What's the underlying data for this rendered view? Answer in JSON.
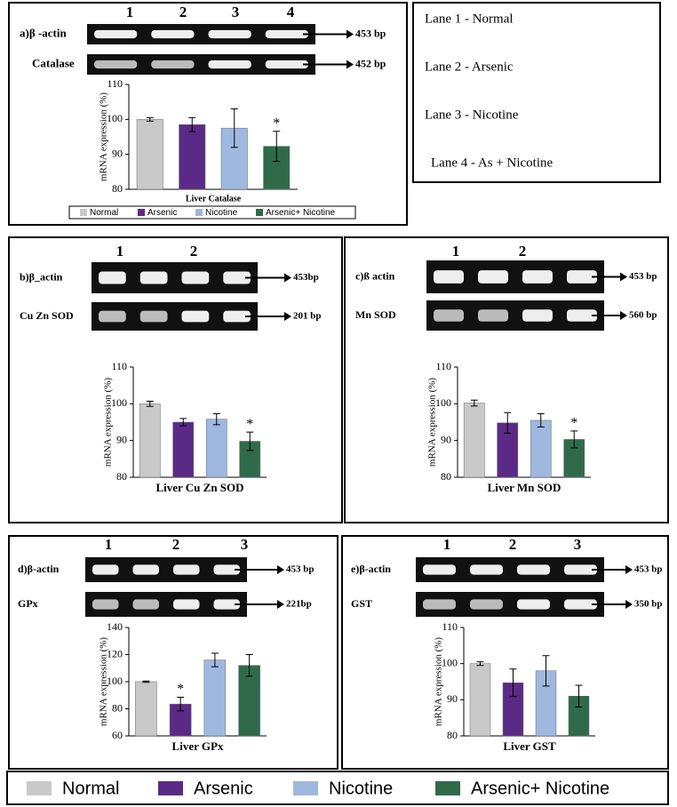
{
  "lanes_key": [
    "Lane 1 - Normal",
    "Lane 2 - Arsenic",
    "Lane 3 - Nicotine",
    "Lane 4 - As + Nicotine"
  ],
  "legend": [
    "Normal",
    "Arsenic",
    "Nicotine",
    "Arsenic+ Nicotine"
  ],
  "chart_data": [
    {
      "type": "bar",
      "panel_label": "a)",
      "gel": {
        "lanes": [
          "1",
          "2",
          "3",
          "4"
        ],
        "rows": [
          {
            "name": "β -actin",
            "size": "453 bp"
          },
          {
            "name": "Catalase",
            "size": "452 bp"
          }
        ]
      },
      "ylabel": "mRNA expression (%)",
      "xlabel": "Liver Catalase",
      "ylim": [
        80,
        110
      ],
      "yticks": [
        80,
        90,
        100,
        110
      ],
      "values": [
        100,
        98.5,
        97.5,
        92.3
      ],
      "errors": [
        0.5,
        2,
        5.5,
        4.3
      ],
      "colors": [
        "#c9c9c9",
        "#5b2a86",
        "#9fb8e0",
        "#2f6b4a"
      ],
      "legend": [
        "Normal",
        "Arsenic",
        "Nicotine",
        "Arsenic+ Nicotine"
      ],
      "annotations": [
        {
          "text": "*",
          "index": 3
        }
      ]
    },
    {
      "type": "bar",
      "panel_label": "b)",
      "gel": {
        "lanes": [
          "1",
          "2"
        ],
        "rows": [
          {
            "name": "β_actin",
            "size": "453bp"
          },
          {
            "name": "Cu Zn SOD",
            "size": "201 bp"
          }
        ]
      },
      "ylabel": "mRNA expression (%)",
      "xlabel": "Liver Cu Zn SOD",
      "ylim": [
        80,
        110
      ],
      "yticks": [
        80,
        90,
        100,
        110
      ],
      "values": [
        100,
        95,
        95.8,
        89.8
      ],
      "errors": [
        0.7,
        1,
        1.5,
        2.5
      ],
      "colors": [
        "#c9c9c9",
        "#5b2a86",
        "#9fb8e0",
        "#2f6b4a"
      ],
      "annotations": [
        {
          "text": "*",
          "index": 3
        }
      ]
    },
    {
      "type": "bar",
      "panel_label": "c)",
      "gel": {
        "lanes": [
          "1",
          "2"
        ],
        "rows": [
          {
            "name": "ß actin",
            "size": "453 bp"
          },
          {
            "name": "Mn SOD",
            "size": "560 bp"
          }
        ]
      },
      "ylabel": "mRNA expression (%)",
      "xlabel": "Liver Mn SOD",
      "ylim": [
        80,
        110
      ],
      "yticks": [
        80,
        90,
        100,
        110
      ],
      "values": [
        100.2,
        94.8,
        95.5,
        90.3
      ],
      "errors": [
        0.8,
        2.8,
        1.8,
        2.3
      ],
      "colors": [
        "#c9c9c9",
        "#5b2a86",
        "#9fb8e0",
        "#2f6b4a"
      ],
      "annotations": [
        {
          "text": "*",
          "index": 3
        }
      ]
    },
    {
      "type": "bar",
      "panel_label": "d)",
      "gel": {
        "lanes": [
          "1",
          "2",
          "3"
        ],
        "rows": [
          {
            "name": "β-actin",
            "size": "453 bp"
          },
          {
            "name": "GPx",
            "size": "221bp"
          }
        ]
      },
      "ylabel": "mRNA expression (%)",
      "xlabel": "Liver GPx",
      "ylim": [
        60,
        140
      ],
      "yticks": [
        60,
        80,
        100,
        120,
        140
      ],
      "values": [
        100,
        83.5,
        116,
        112
      ],
      "errors": [
        0.5,
        5,
        5,
        8
      ],
      "colors": [
        "#c9c9c9",
        "#5b2a86",
        "#9fb8e0",
        "#2f6b4a"
      ],
      "annotations": [
        {
          "text": "*",
          "index": 1
        }
      ]
    },
    {
      "type": "bar",
      "panel_label": "e)",
      "gel": {
        "lanes": [
          "1",
          "2",
          "3"
        ],
        "rows": [
          {
            "name": "β-actin",
            "size": "453 bp"
          },
          {
            "name": "GST",
            "size": "350 bp"
          }
        ]
      },
      "ylabel": "mRNA expression (%)",
      "xlabel": "Liver GST",
      "ylim": [
        80,
        110
      ],
      "yticks": [
        80,
        90,
        100,
        110
      ],
      "values": [
        100,
        94.7,
        98,
        91
      ],
      "errors": [
        0.5,
        3.8,
        4.2,
        3
      ],
      "colors": [
        "#c9c9c9",
        "#5b2a86",
        "#9fb8e0",
        "#2f6b4a"
      ],
      "annotations": []
    }
  ]
}
